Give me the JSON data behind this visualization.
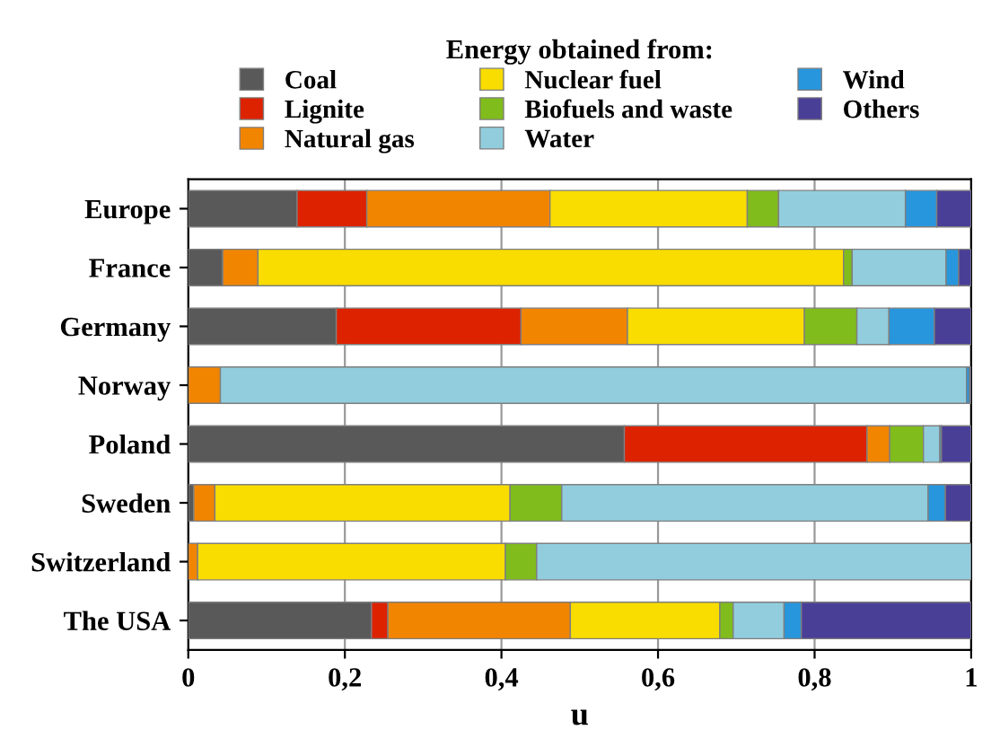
{
  "chart_data": {
    "type": "bar",
    "orientation": "horizontal",
    "stacked": true,
    "legend_title": "Energy obtained from:",
    "xlabel": "u",
    "categories": [
      "Europe",
      "France",
      "Germany",
      "Norway",
      "Poland",
      "Sweden",
      "Switzerland",
      "The USA"
    ],
    "series": [
      {
        "name": "Coal",
        "color": "#595959",
        "values": [
          0.139,
          0.044,
          0.189,
          0,
          0.557,
          0.007,
          0,
          0.234
        ]
      },
      {
        "name": "Lignite",
        "color": "#dd2200",
        "values": [
          0.089,
          0,
          0.236,
          0,
          0.31,
          0,
          0,
          0.021
        ]
      },
      {
        "name": "Natural gas",
        "color": "#f28500",
        "values": [
          0.234,
          0.045,
          0.136,
          0.041,
          0.029,
          0.027,
          0.012,
          0.233
        ]
      },
      {
        "name": "Nuclear fuel",
        "color": "#f9dc00",
        "values": [
          0.252,
          0.748,
          0.226,
          0,
          0,
          0.377,
          0.393,
          0.191
        ]
      },
      {
        "name": "Biofuels and waste",
        "color": "#80bc1c",
        "values": [
          0.04,
          0.011,
          0.067,
          0,
          0.043,
          0.066,
          0.04,
          0.017
        ]
      },
      {
        "name": "Water",
        "color": "#92cddd",
        "values": [
          0.162,
          0.12,
          0.041,
          0.953,
          0.021,
          0.468,
          0.555,
          0.065
        ]
      },
      {
        "name": "Wind",
        "color": "#2896dc",
        "values": [
          0.04,
          0.016,
          0.058,
          0.004,
          0.002,
          0.022,
          0,
          0.022
        ]
      },
      {
        "name": "Others",
        "color": "#4a3f97",
        "values": [
          0.044,
          0.016,
          0.047,
          0.002,
          0.038,
          0.033,
          0,
          0.217
        ]
      }
    ],
    "xlim": [
      0,
      1
    ],
    "xticks": [
      0,
      {
        "value": 0.2,
        "label": "0,2"
      },
      {
        "value": 0.4,
        "label": "0,4"
      },
      {
        "value": 0.6,
        "label": "0,6"
      },
      {
        "value": 0.8,
        "label": "0,8"
      },
      1
    ],
    "grid": "x",
    "legend": "top"
  }
}
